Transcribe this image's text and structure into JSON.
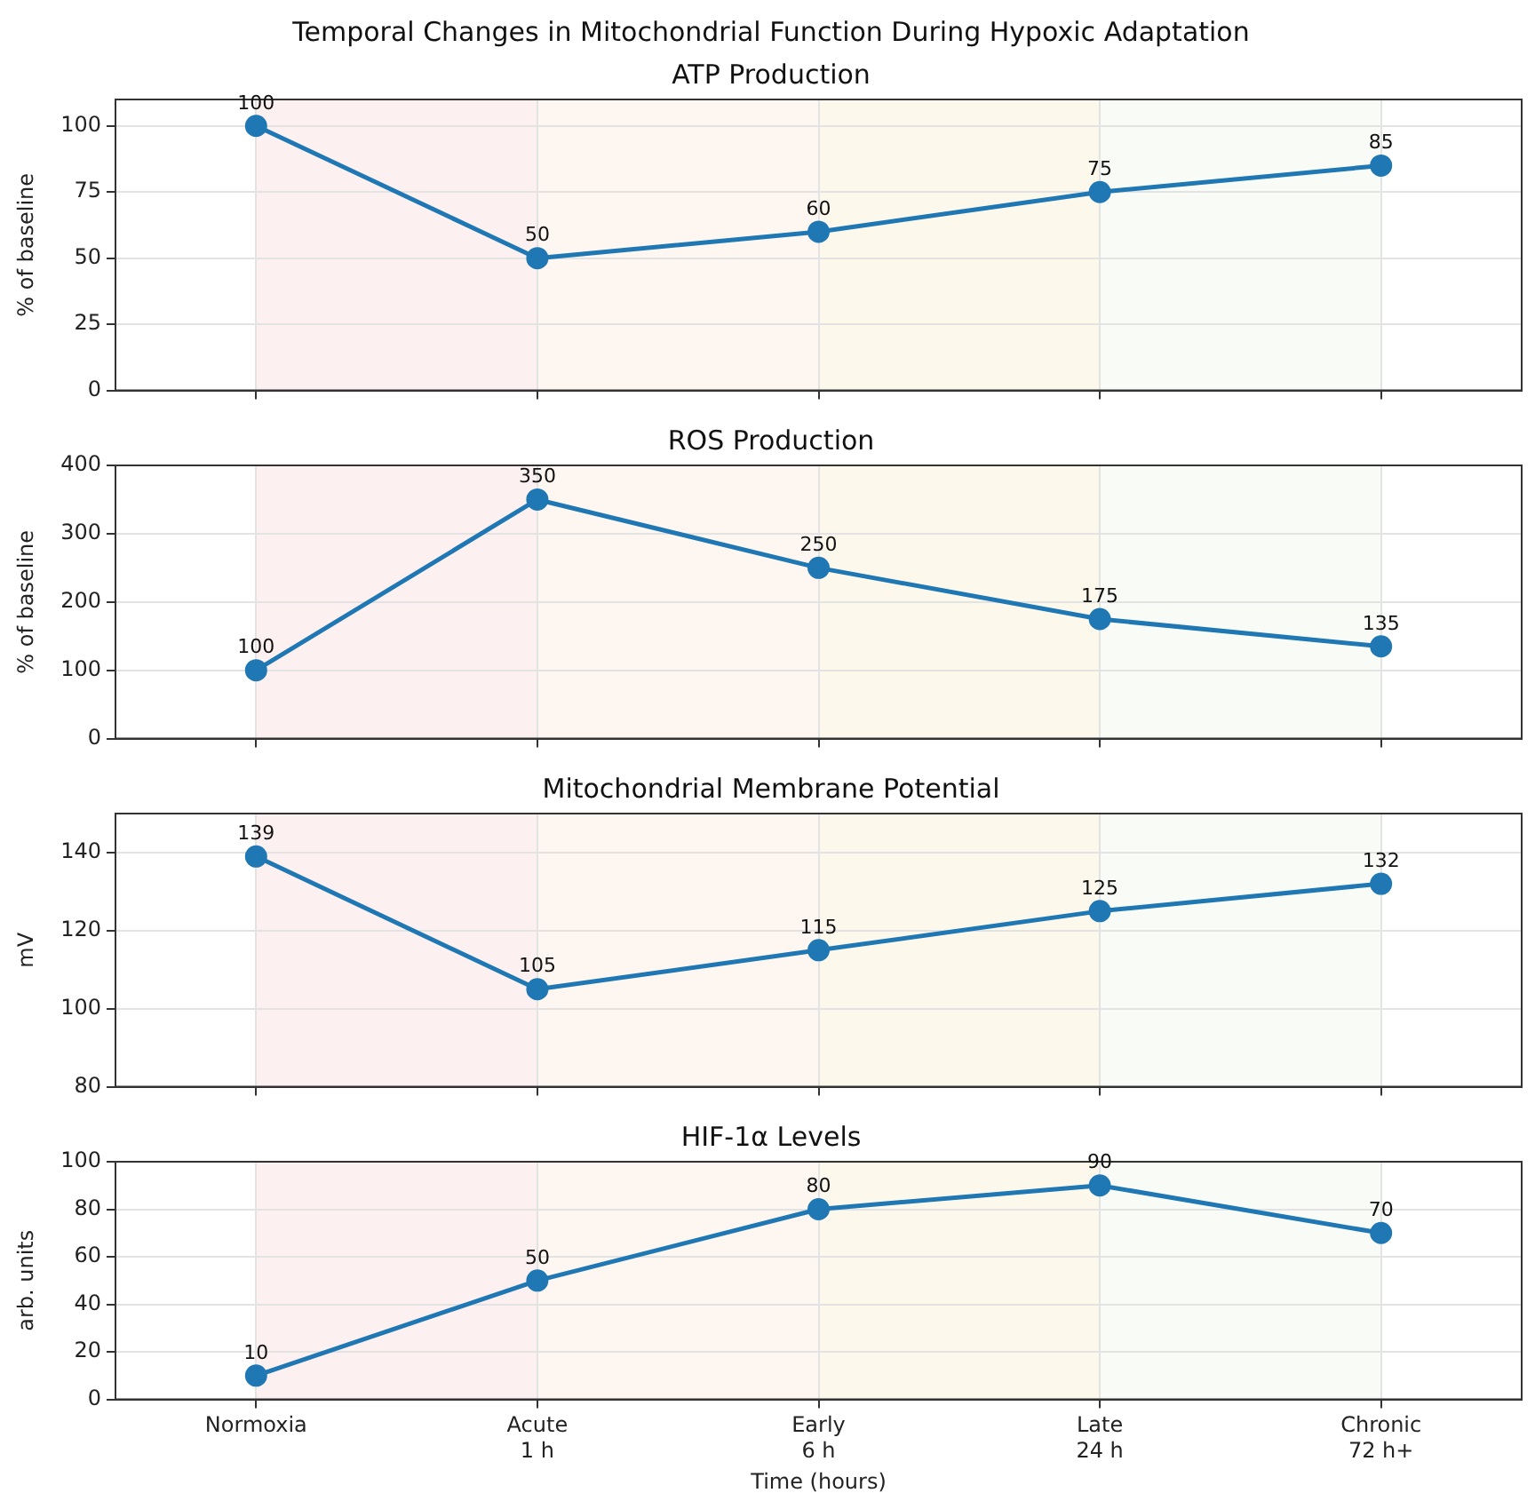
{
  "chart_data": [
    {
      "type": "line",
      "title": "Temporal Changes in Mitochondrial Function During Hypoxic Adaptation",
      "subtitle": "ATP Production",
      "ylabel": "% of baseline",
      "categories": [
        "Normoxia",
        "Acute\n1 h",
        "Early\n6 h",
        "Late\n24 h",
        "Chronic\n72 h+"
      ],
      "ylim": [
        0,
        110
      ],
      "yticks": [
        0,
        25,
        50,
        75,
        100
      ],
      "tick_labels": "y",
      "grid": true,
      "marker": "circle",
      "data_labels": true,
      "series": [
        {
          "color": "#1f77b4",
          "values": [
            100,
            50,
            60,
            75,
            85
          ]
        }
      ],
      "bands": [
        {
          "axis": "x",
          "from": "Normoxia",
          "to": "Acute\n1 h",
          "color": "#fcf1f0"
        },
        {
          "axis": "x",
          "from": "Acute\n1 h",
          "to": "Early\n6 h",
          "color": "#fdf6f1"
        },
        {
          "axis": "x",
          "from": "Early\n6 h",
          "to": "Late\n24 h",
          "color": "#fcf9ec"
        },
        {
          "axis": "x",
          "from": "Late\n24 h",
          "to": "Chronic\n72 h+",
          "color": "#f9fcf6"
        }
      ]
    },
    {
      "type": "line",
      "title": "ROS Production",
      "ylabel": "% of baseline",
      "categories": [
        "Normoxia",
        "Acute\n1 h",
        "Early\n6 h",
        "Late\n24 h",
        "Chronic\n72 h+"
      ],
      "ylim": [
        0,
        400
      ],
      "yticks": [
        0,
        100,
        200,
        300,
        400
      ],
      "tick_labels": "y",
      "grid": true,
      "marker": "circle",
      "data_labels": true,
      "series": [
        {
          "color": "#1f77b4",
          "values": [
            100,
            350,
            250,
            175,
            135
          ]
        }
      ],
      "bands": [
        {
          "axis": "x",
          "from": "Normoxia",
          "to": "Acute\n1 h",
          "color": "#fcf1f0"
        },
        {
          "axis": "x",
          "from": "Acute\n1 h",
          "to": "Early\n6 h",
          "color": "#fdf6f1"
        },
        {
          "axis": "x",
          "from": "Early\n6 h",
          "to": "Late\n24 h",
          "color": "#fcf9ec"
        },
        {
          "axis": "x",
          "from": "Late\n24 h",
          "to": "Chronic\n72 h+",
          "color": "#f9fcf6"
        }
      ]
    },
    {
      "type": "line",
      "title": "Mitochondrial Membrane Potential",
      "ylabel": "mV",
      "categories": [
        "Normoxia",
        "Acute\n1 h",
        "Early\n6 h",
        "Late\n24 h",
        "Chronic\n72 h+"
      ],
      "ylim": [
        80,
        150
      ],
      "yticks": [
        80,
        100,
        120,
        140
      ],
      "tick_labels": "y",
      "grid": true,
      "marker": "circle",
      "data_labels": true,
      "series": [
        {
          "color": "#1f77b4",
          "values": [
            139,
            105,
            115,
            125,
            132
          ]
        }
      ],
      "bands": [
        {
          "axis": "x",
          "from": "Normoxia",
          "to": "Acute\n1 h",
          "color": "#fcf1f0"
        },
        {
          "axis": "x",
          "from": "Acute\n1 h",
          "to": "Early\n6 h",
          "color": "#fdf6f1"
        },
        {
          "axis": "x",
          "from": "Early\n6 h",
          "to": "Late\n24 h",
          "color": "#fcf9ec"
        },
        {
          "axis": "x",
          "from": "Late\n24 h",
          "to": "Chronic\n72 h+",
          "color": "#f9fcf6"
        }
      ]
    },
    {
      "type": "line",
      "title": "HIF-1α Levels",
      "ylabel": "arb. units",
      "xlabel": "Time (hours)",
      "categories": [
        "Normoxia",
        "Acute\n1 h",
        "Early\n6 h",
        "Late\n24 h",
        "Chronic\n72 h+"
      ],
      "ylim": [
        0,
        100
      ],
      "yticks": [
        0,
        20,
        40,
        60,
        80,
        100
      ],
      "grid": true,
      "marker": "circle",
      "data_labels": true,
      "series": [
        {
          "color": "#1f77b4",
          "values": [
            10,
            50,
            80,
            90,
            70
          ]
        }
      ],
      "bands": [
        {
          "axis": "x",
          "from": "Normoxia",
          "to": "Acute\n1 h",
          "color": "#fcf1f0"
        },
        {
          "axis": "x",
          "from": "Acute\n1 h",
          "to": "Early\n6 h",
          "color": "#fdf6f1"
        },
        {
          "axis": "x",
          "from": "Early\n6 h",
          "to": "Late\n24 h",
          "color": "#fcf9ec"
        },
        {
          "axis": "x",
          "from": "Late\n24 h",
          "to": "Chronic\n72 h+",
          "color": "#f9fcf6"
        }
      ]
    }
  ]
}
